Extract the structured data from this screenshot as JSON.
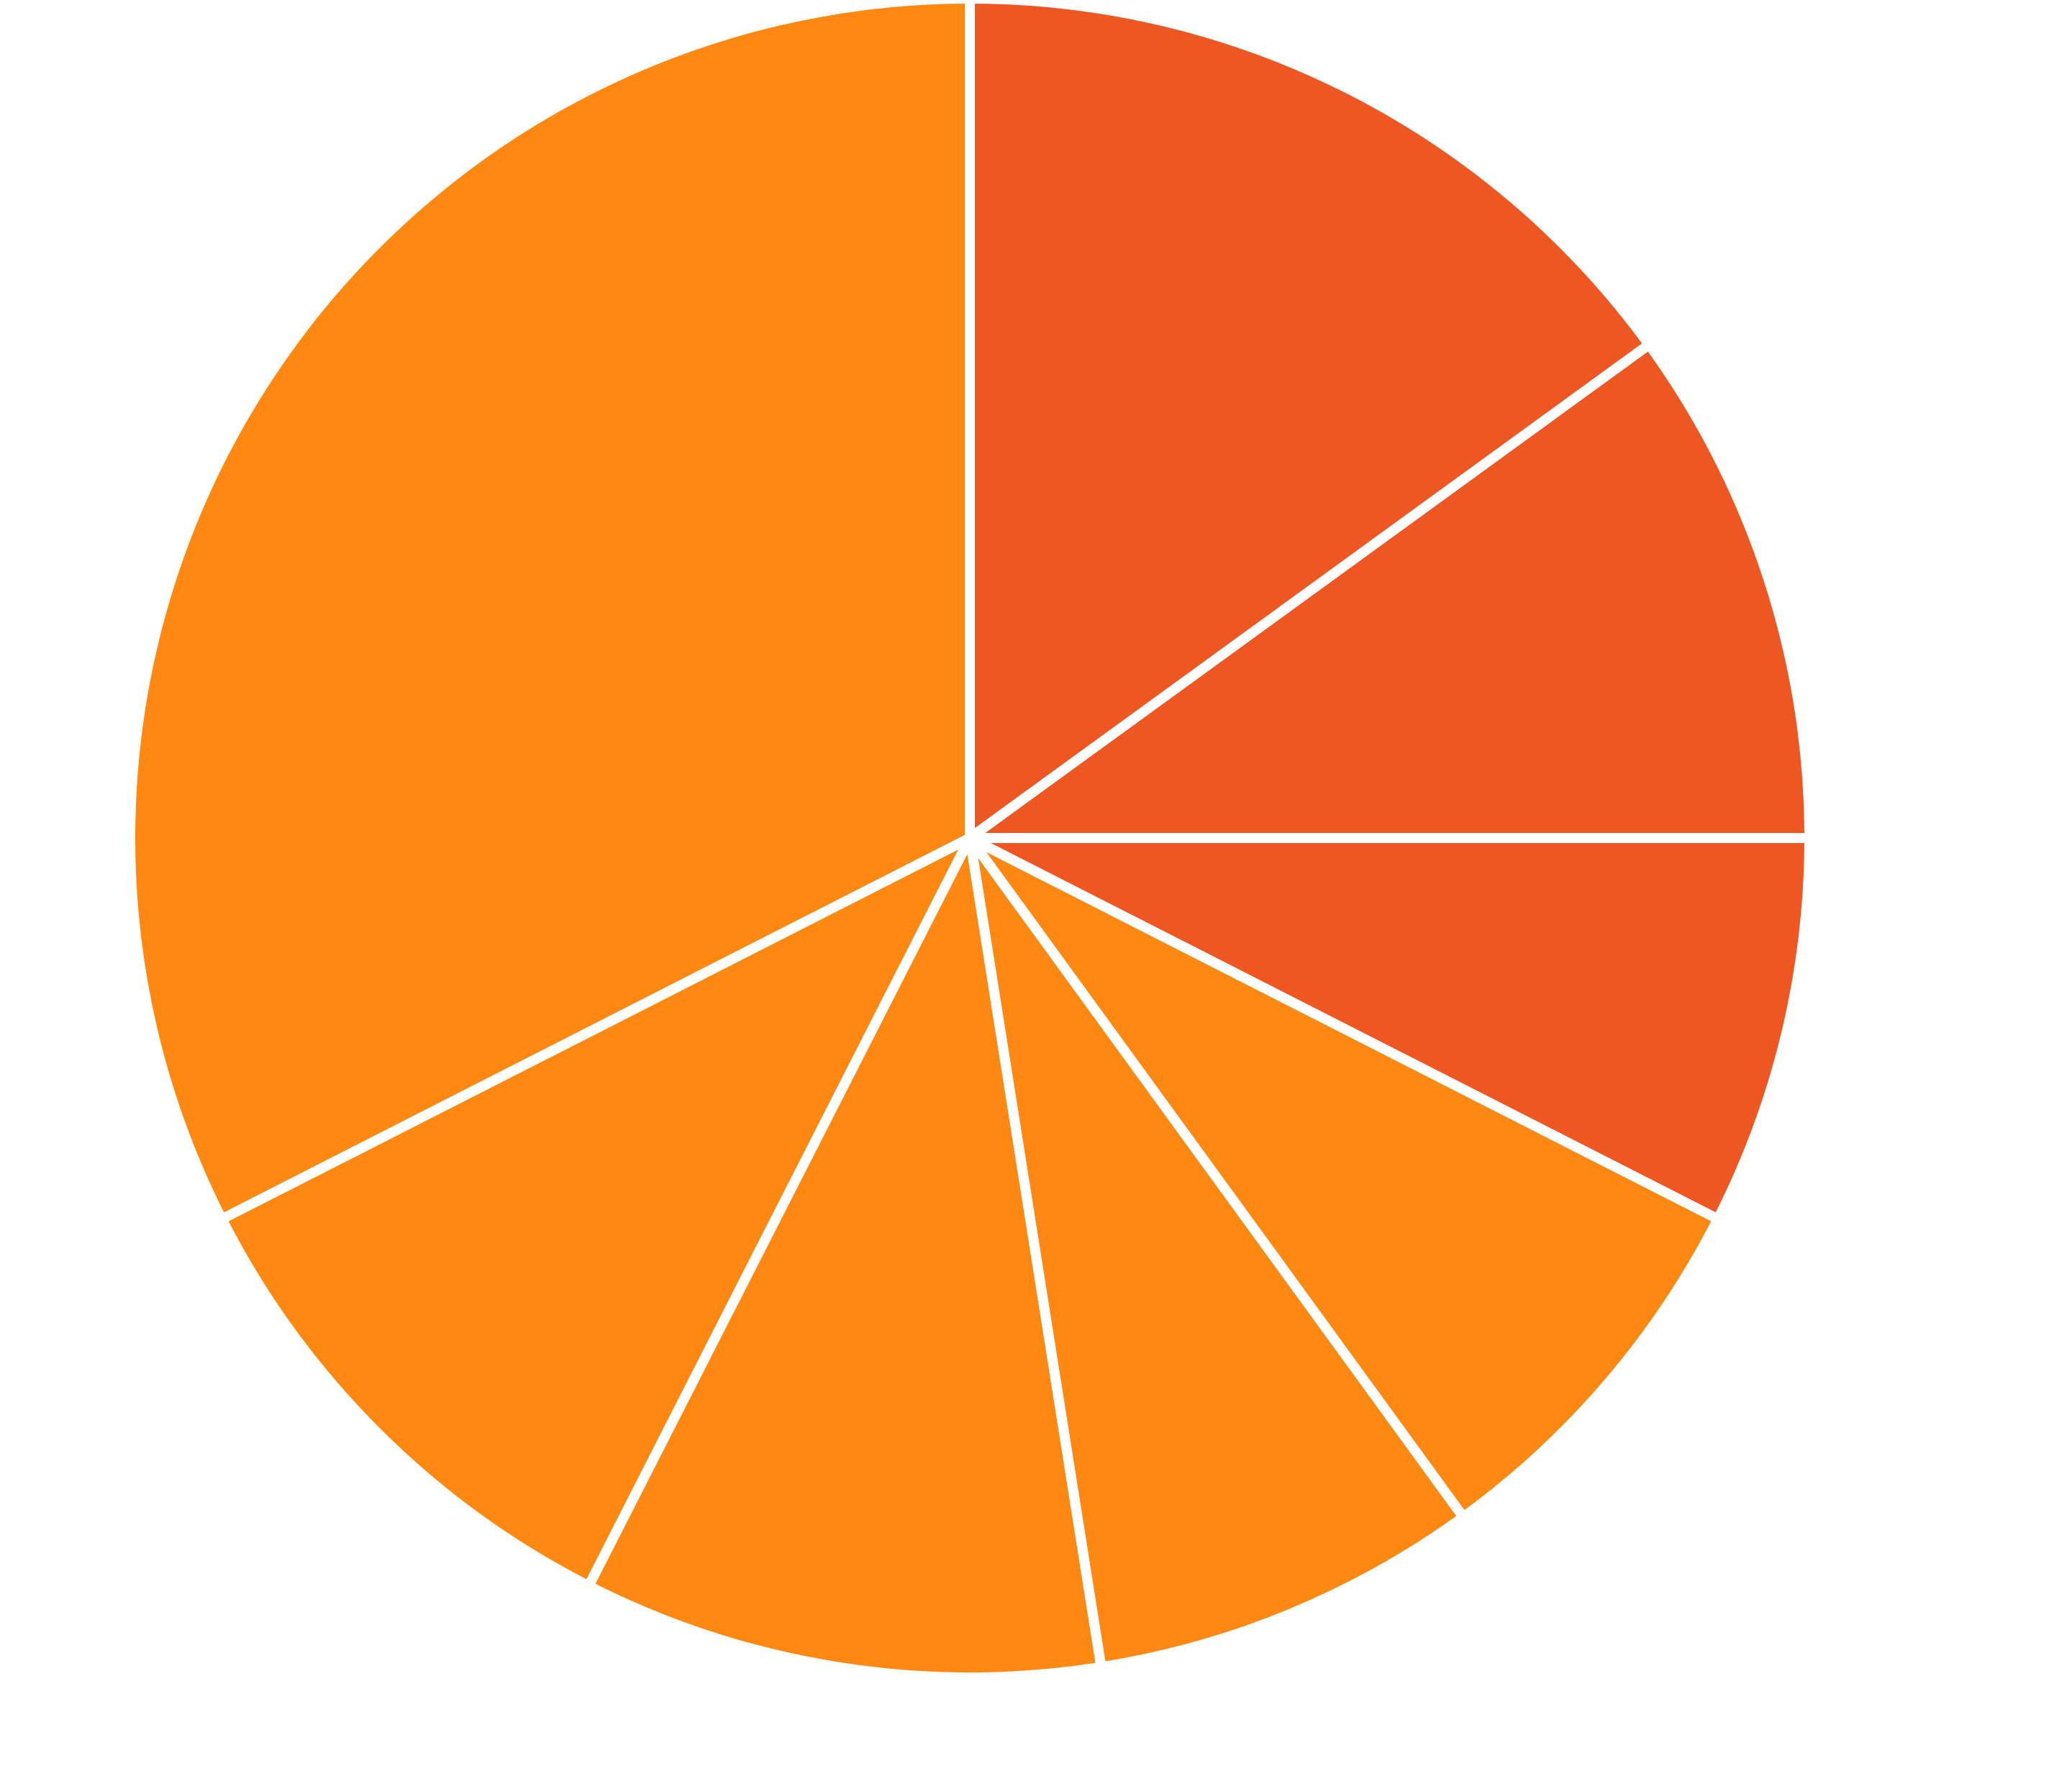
{
  "chart_data": {
    "type": "pie",
    "values": [
      15,
      10,
      7.5,
      7.5,
      7.5,
      10,
      10,
      32.5
    ],
    "colors": [
      "#ee5622",
      "#ee5622",
      "#ee5622",
      "#fe8811",
      "#fe8811",
      "#fe8811",
      "#fe8811",
      "#fe8811"
    ]
  }
}
